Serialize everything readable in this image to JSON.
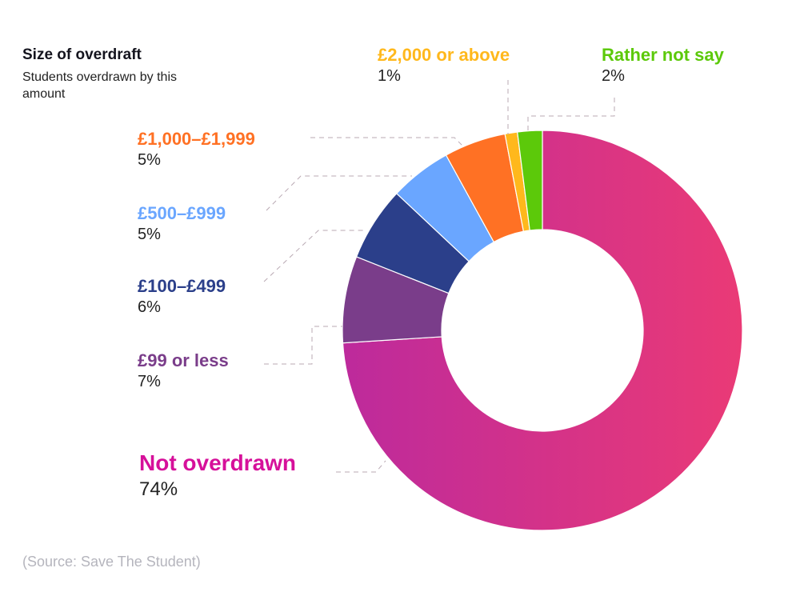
{
  "chart_data": {
    "type": "pie",
    "donut": true,
    "title": "Size of overdraft",
    "subtitle": "Students overdrawn by this amount",
    "slices": [
      {
        "label": "Not overdrawn",
        "value": 74,
        "value_label": "74%",
        "color": "#d6109a",
        "gradient": [
          "#bd2a9c",
          "#ea3a76"
        ]
      },
      {
        "label": "£99 or less",
        "value": 7,
        "value_label": "7%",
        "color": "#7a3d8a"
      },
      {
        "label": "£100–£499",
        "value": 6,
        "value_label": "6%",
        "color": "#2b3f8a"
      },
      {
        "label": "£500–£999",
        "value": 5,
        "value_label": "5%",
        "color": "#6aa6ff"
      },
      {
        "label": "£1,000–£1,999",
        "value": 5,
        "value_label": "5%",
        "color": "#ff7124"
      },
      {
        "label": "£2,000 or above",
        "value": 1,
        "value_label": "1%",
        "color": "#ffb81c"
      },
      {
        "label": "Rather not say",
        "value": 2,
        "value_label": "2%",
        "color": "#5cc90a"
      }
    ],
    "source": "(Source: Save The Student)"
  }
}
